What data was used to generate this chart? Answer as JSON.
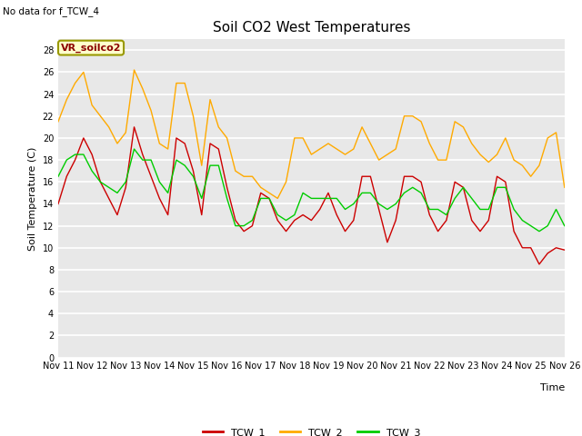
{
  "title": "Soil CO2 West Temperatures",
  "subtitle": "No data for f_TCW_4",
  "ylabel": "Soil Temperature (C)",
  "xlabel": "Time",
  "annotation": "VR_soilco2",
  "bg_color": "#ffffff",
  "plot_bg_color": "#e8e8e8",
  "ylim": [
    0,
    29
  ],
  "yticks": [
    0,
    2,
    4,
    6,
    8,
    10,
    12,
    14,
    16,
    18,
    20,
    22,
    24,
    26,
    28
  ],
  "xticklabels": [
    "Nov 11",
    "Nov 12",
    "Nov 13",
    "Nov 14",
    "Nov 15",
    "Nov 16",
    "Nov 17",
    "Nov 18",
    "Nov 19",
    "Nov 20",
    "Nov 21",
    "Nov 22",
    "Nov 23",
    "Nov 24",
    "Nov 25",
    "Nov 26"
  ],
  "line_colors": {
    "TCW_1": "#cc0000",
    "TCW_2": "#ffaa00",
    "TCW_3": "#00cc00"
  },
  "TCW_1": [
    14.0,
    16.5,
    18.0,
    20.0,
    18.5,
    16.0,
    14.5,
    13.0,
    15.5,
    21.0,
    18.5,
    16.5,
    14.5,
    13.0,
    20.0,
    19.5,
    17.0,
    13.0,
    19.5,
    19.0,
    15.5,
    12.5,
    11.5,
    12.0,
    15.0,
    14.5,
    12.5,
    11.5,
    12.5,
    13.0,
    12.5,
    13.5,
    15.0,
    13.0,
    11.5,
    12.5,
    16.5,
    16.5,
    13.5,
    10.5,
    12.5,
    16.5,
    16.5,
    16.0,
    13.0,
    11.5,
    12.5,
    16.0,
    15.5,
    12.5,
    11.5,
    12.5,
    16.5,
    16.0,
    11.5,
    10.0,
    10.0,
    8.5,
    9.5,
    10.0,
    9.8
  ],
  "TCW_2": [
    21.5,
    23.5,
    25.0,
    26.0,
    23.0,
    22.0,
    21.0,
    19.5,
    20.5,
    26.2,
    24.5,
    22.5,
    19.5,
    19.0,
    25.0,
    25.0,
    22.0,
    17.5,
    23.5,
    21.0,
    20.0,
    17.0,
    16.5,
    16.5,
    15.5,
    15.0,
    14.5,
    16.0,
    20.0,
    20.0,
    18.5,
    19.0,
    19.5,
    19.0,
    18.5,
    19.0,
    21.0,
    19.5,
    18.0,
    18.5,
    19.0,
    22.0,
    22.0,
    21.5,
    19.5,
    18.0,
    18.0,
    21.5,
    21.0,
    19.5,
    18.5,
    17.8,
    18.5,
    20.0,
    18.0,
    17.5,
    16.5,
    17.5,
    20.0,
    20.5,
    15.5
  ],
  "TCW_3": [
    16.5,
    18.0,
    18.5,
    18.5,
    17.0,
    16.0,
    15.5,
    15.0,
    16.0,
    19.0,
    18.0,
    18.0,
    16.0,
    15.0,
    18.0,
    17.5,
    16.5,
    14.5,
    17.5,
    17.5,
    14.5,
    12.0,
    12.0,
    12.5,
    14.5,
    14.5,
    13.0,
    12.5,
    13.0,
    15.0,
    14.5,
    14.5,
    14.5,
    14.5,
    13.5,
    14.0,
    15.0,
    15.0,
    14.0,
    13.5,
    14.0,
    15.0,
    15.5,
    15.0,
    13.5,
    13.5,
    13.0,
    14.5,
    15.5,
    14.5,
    13.5,
    13.5,
    15.5,
    15.5,
    13.5,
    12.5,
    12.0,
    11.5,
    12.0,
    13.5,
    12.0
  ]
}
